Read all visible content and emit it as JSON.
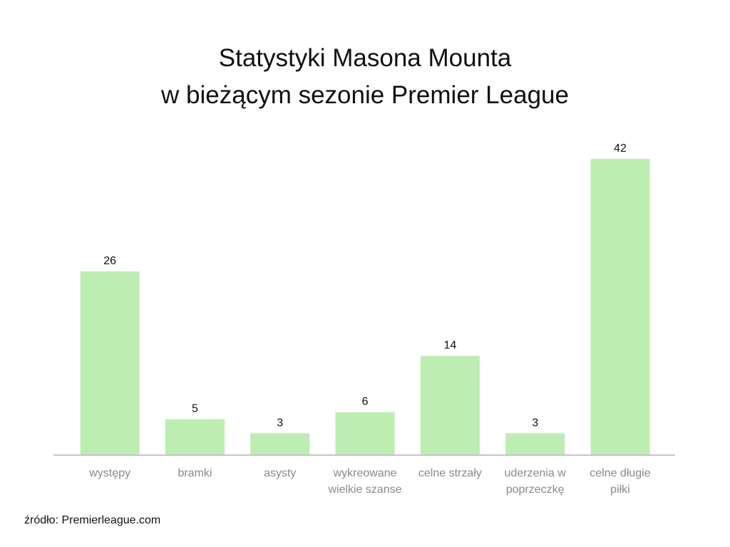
{
  "chart_data": {
    "type": "bar",
    "title": [
      "Statystyki Masona Mounta",
      "w bieżącym sezonie Premier League"
    ],
    "categories": [
      [
        "występy"
      ],
      [
        "bramki"
      ],
      [
        "asysty"
      ],
      [
        "wykreowane",
        "wielkie szanse"
      ],
      [
        "celne strzały"
      ],
      [
        "uderzenia w",
        "poprzeczkę"
      ],
      [
        "celne długie",
        "piłki"
      ]
    ],
    "values": [
      26,
      5,
      3,
      6,
      14,
      3,
      42
    ],
    "xlabel": "",
    "ylabel": "",
    "ylim": [
      0,
      42
    ],
    "grid": false,
    "data_labels": true,
    "bar_color": "#bdeeb1",
    "axis_color": "#c6c6c6",
    "category_label_color": "#8a8a8a"
  },
  "source": "źródło: Premierleague.com"
}
